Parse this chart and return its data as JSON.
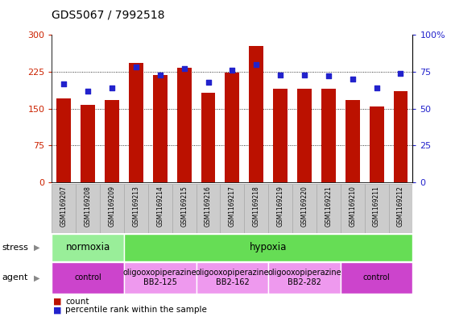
{
  "title": "GDS5067 / 7992518",
  "samples": [
    "GSM1169207",
    "GSM1169208",
    "GSM1169209",
    "GSM1169213",
    "GSM1169214",
    "GSM1169215",
    "GSM1169216",
    "GSM1169217",
    "GSM1169218",
    "GSM1169219",
    "GSM1169220",
    "GSM1169221",
    "GSM1169210",
    "GSM1169211",
    "GSM1169212"
  ],
  "counts": [
    170,
    157,
    168,
    243,
    218,
    233,
    182,
    223,
    277,
    190,
    190,
    190,
    168,
    155,
    185
  ],
  "percentiles": [
    67,
    62,
    64,
    78,
    73,
    77,
    68,
    76,
    80,
    73,
    73,
    72,
    70,
    64,
    74
  ],
  "bar_color": "#bb1100",
  "dot_color": "#2222cc",
  "ylim_left": [
    0,
    300
  ],
  "ylim_right": [
    0,
    100
  ],
  "yticks_left": [
    0,
    75,
    150,
    225,
    300
  ],
  "yticks_right": [
    0,
    25,
    50,
    75,
    100
  ],
  "ytick_labels_left": [
    "0",
    "75",
    "150",
    "225",
    "300"
  ],
  "ytick_labels_right": [
    "0",
    "25",
    "50",
    "75",
    "100%"
  ],
  "stress_groups": [
    {
      "label": "normoxia",
      "start": 0,
      "end": 3,
      "color": "#99ee99"
    },
    {
      "label": "hypoxia",
      "start": 3,
      "end": 15,
      "color": "#66dd55"
    }
  ],
  "agent_groups": [
    {
      "label": "control",
      "start": 0,
      "end": 3,
      "color": "#cc44cc"
    },
    {
      "label": "oligooxopiperazine\nBB2-125",
      "start": 3,
      "end": 6,
      "color": "#ee99ee"
    },
    {
      "label": "oligooxopiperazine\nBB2-162",
      "start": 6,
      "end": 9,
      "color": "#ee99ee"
    },
    {
      "label": "oligooxopiperazine\nBB2-282",
      "start": 9,
      "end": 12,
      "color": "#ee99ee"
    },
    {
      "label": "control",
      "start": 12,
      "end": 15,
      "color": "#cc44cc"
    }
  ],
  "stress_label": "stress",
  "agent_label": "agent",
  "legend_count_label": "count",
  "legend_pct_label": "percentile rank within the sample",
  "bg_color": "#ffffff",
  "tick_color_left": "#cc2200",
  "tick_color_right": "#2222cc",
  "bar_width": 0.6,
  "gridlines": [
    75,
    150,
    225
  ],
  "xlabel_bg": "#cccccc",
  "xlabel_edge": "#aaaaaa"
}
